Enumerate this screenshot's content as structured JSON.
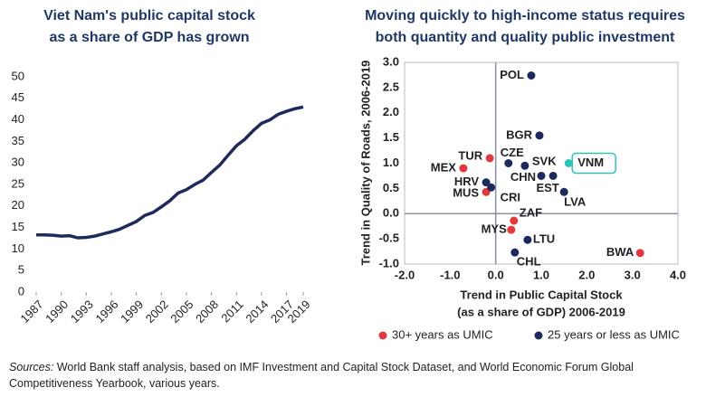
{
  "chart_data": [
    {
      "type": "line",
      "title": [
        "Viet Nam's public capital stock",
        "as a share of GDP has grown"
      ],
      "x": [
        1987,
        1988,
        1989,
        1990,
        1991,
        1992,
        1993,
        1994,
        1995,
        1996,
        1997,
        1998,
        1999,
        2000,
        2001,
        2002,
        2003,
        2004,
        2005,
        2006,
        2007,
        2008,
        2009,
        2010,
        2011,
        2012,
        2013,
        2014,
        2015,
        2016,
        2017,
        2018,
        2019
      ],
      "values": [
        13.3,
        13.3,
        13.2,
        13.0,
        13.1,
        12.6,
        12.7,
        13.0,
        13.5,
        14.0,
        14.6,
        15.5,
        16.4,
        17.8,
        18.5,
        19.8,
        21.2,
        23.0,
        23.8,
        25.0,
        26.0,
        27.8,
        29.5,
        31.8,
        34.0,
        35.5,
        37.5,
        39.2,
        40.0,
        41.3,
        42.0,
        42.6,
        43.0
      ],
      "color": "#1f2a5c",
      "xlim": [
        1987,
        2019
      ],
      "xticks": [
        1987,
        1990,
        1993,
        1996,
        1999,
        2002,
        2005,
        2008,
        2011,
        2014,
        2017,
        2019
      ],
      "ylim": [
        0,
        50
      ],
      "yticks": [
        0,
        5,
        10,
        15,
        20,
        25,
        30,
        35,
        40,
        45,
        50
      ]
    },
    {
      "type": "scatter",
      "title": [
        "Moving quickly to high-income status requires",
        "both quantity and quality public investment"
      ],
      "x_label": [
        "Trend in Public Capital Stock",
        "(as a share of GDP) 2006-2019"
      ],
      "y_label": "Trend in Quality of Roads, 2006-2019",
      "series": [
        {
          "name": "30+ years as UMIC",
          "color": "#e03a3e",
          "labels": [
            "TUR",
            "MEX",
            "MUS",
            "ZAF",
            "MYS",
            "BWA"
          ],
          "x": [
            -0.13,
            -0.71,
            -0.21,
            0.4,
            0.34,
            3.17
          ],
          "values": [
            1.1,
            0.9,
            0.43,
            -0.14,
            -0.32,
            -0.78
          ]
        },
        {
          "name": "25 years or less as UMIC",
          "color": "#1f2a5c",
          "labels": [
            "POL",
            "BGR",
            "CZE",
            "SVK",
            "CHN",
            "EST",
            "LVA",
            "HRV",
            "CRI",
            "LTU",
            "CHL"
          ],
          "x": [
            0.78,
            0.96,
            0.28,
            0.64,
            1.0,
            1.26,
            1.5,
            -0.21,
            -0.1,
            0.7,
            0.42
          ],
          "values": [
            2.74,
            1.55,
            1.0,
            0.95,
            0.75,
            0.75,
            0.43,
            0.62,
            0.52,
            -0.52,
            -0.77
          ]
        },
        {
          "color": "#2ec4b6",
          "highlight": true,
          "labels": [
            "VNM"
          ],
          "x": [
            1.6
          ],
          "values": [
            1.0
          ]
        }
      ],
      "xlim": [
        -2,
        4
      ],
      "xticks": [
        {
          "value": -2,
          "label": "-2.0"
        },
        {
          "value": -1,
          "label": "-1.0"
        },
        {
          "value": 0,
          "label": "0.0"
        },
        {
          "value": 1,
          "label": "1.0"
        },
        {
          "value": 2,
          "label": "2.0"
        },
        {
          "value": 3,
          "label": "3.0"
        },
        {
          "value": 4,
          "label": "4.0"
        }
      ],
      "ylim": [
        -1,
        3
      ],
      "yticks": [
        {
          "value": -1,
          "label": "-1.0"
        },
        {
          "value": -0.5,
          "label": "-0.5"
        },
        {
          "value": 0,
          "label": "0.0"
        },
        {
          "value": 0.5,
          "label": "0.5"
        },
        {
          "value": 1,
          "label": "1.0"
        },
        {
          "value": 1.5,
          "label": "1.5"
        },
        {
          "value": 2,
          "label": "2.0"
        },
        {
          "value": 2.5,
          "label": "2.5"
        },
        {
          "value": 3,
          "label": "3.0"
        }
      ]
    }
  ],
  "sources": {
    "label": "Sources:",
    "text": "World Bank staff analysis, based on IMF Investment and Capital Stock Dataset, and World Economic Forum Global Competitiveness Yearbook, various years."
  }
}
